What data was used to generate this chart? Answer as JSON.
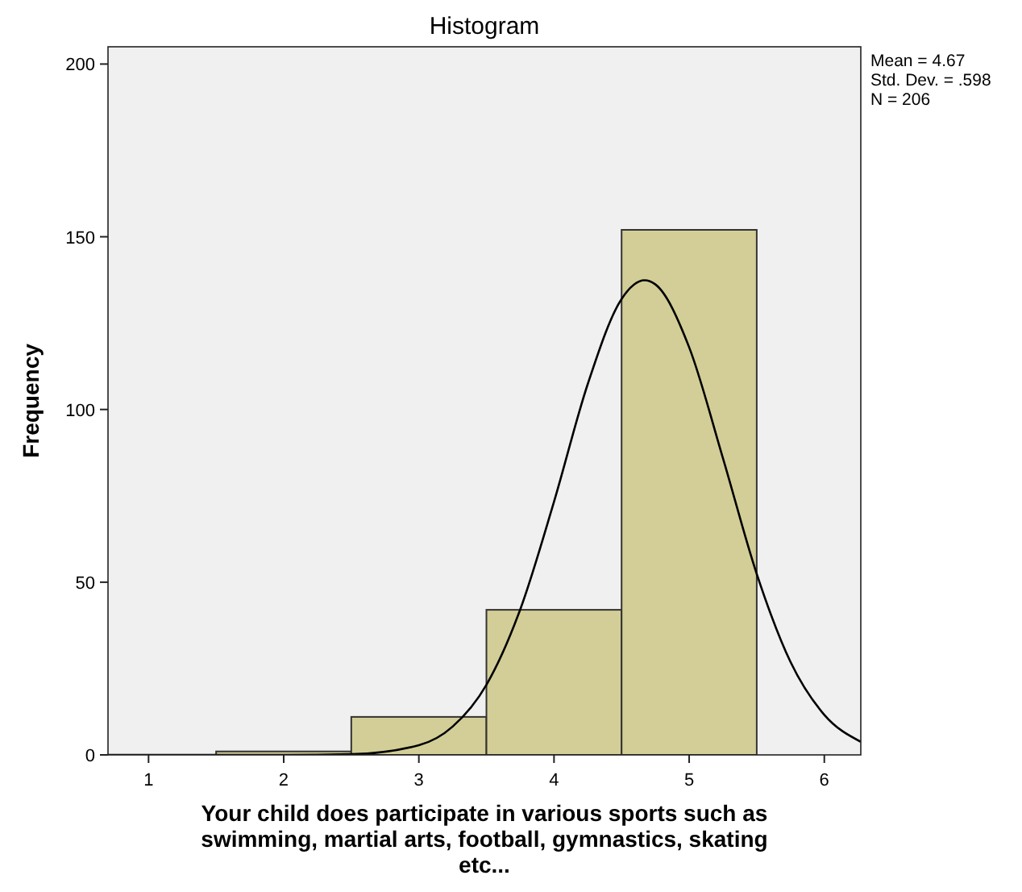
{
  "chart_data": {
    "type": "histogram",
    "title": "Histogram",
    "xlabel": "Your child does participate in various sports such as swimming, martial arts, football, gymnastics, skating etc...",
    "ylabel": "Frequency",
    "bins": [
      1.5,
      2.5,
      3.5,
      4.5,
      5.5
    ],
    "values": [
      1,
      11,
      42,
      152
    ],
    "color": "#d3ce97",
    "series": [
      {
        "type": "line",
        "color": "#000000",
        "x": [
          0.7,
          2,
          2.5,
          3,
          3.25,
          3.5,
          3.75,
          4,
          4.25,
          4.5,
          4.67,
          4.75,
          5,
          5.25,
          5.5,
          5.75,
          6,
          6.27
        ],
        "values": [
          0,
          0,
          0.2,
          2.8,
          8.2,
          20.3,
          42.1,
          73.3,
          107.4,
          132,
          137.4,
          136.2,
          118,
          85.9,
          52.4,
          26.9,
          11.6,
          3.8
        ]
      }
    ],
    "xlim": [
      0.7,
      6.27
    ],
    "xticks": [
      1,
      2,
      3,
      4,
      5,
      6
    ],
    "ylim": [
      0,
      205
    ],
    "yticks": [
      0,
      50,
      100,
      150,
      200
    ],
    "grid": false,
    "marker": "none",
    "line_style": "solid",
    "annotations": [
      "Mean = 4.67",
      "Std. Dev. = .598",
      "N = 206"
    ]
  }
}
